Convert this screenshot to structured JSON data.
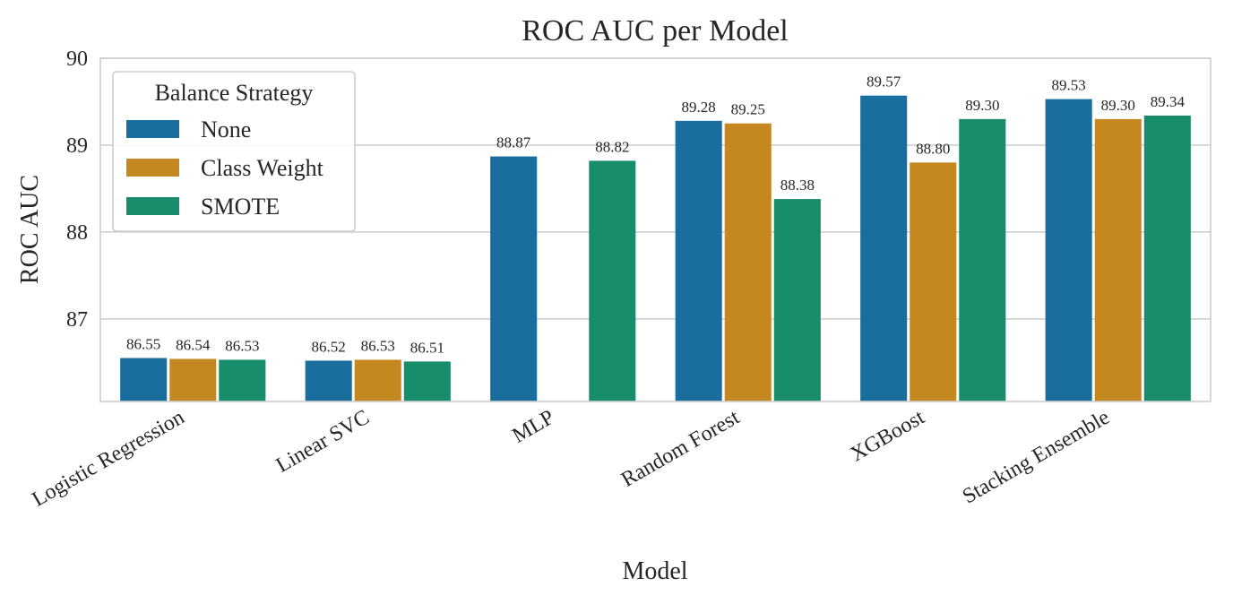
{
  "chart_data": {
    "type": "bar",
    "title": "ROC AUC per Model",
    "xlabel": "Model",
    "ylabel": "ROC AUC",
    "ylim": [
      86.05,
      90
    ],
    "yticks": [
      "87",
      "88",
      "89",
      "90"
    ],
    "ytick_values": [
      87,
      88,
      89,
      90
    ],
    "grid": "horizontal",
    "legend": {
      "title": "Balance Strategy",
      "placement": "top-left"
    },
    "categories": [
      "Logistic Regression",
      "Linear SVC",
      "MLP",
      "Random Forest",
      "XGBoost",
      "Stacking Ensemble"
    ],
    "series": [
      {
        "name": "None",
        "color": "#1a6e9e",
        "values": [
          86.55,
          86.52,
          88.87,
          89.28,
          89.57,
          89.53
        ],
        "labels": [
          "86.55",
          "86.52",
          "88.87",
          "89.28",
          "89.57",
          "89.53"
        ]
      },
      {
        "name": "Class Weight",
        "color": "#c58820",
        "values": [
          86.54,
          86.53,
          null,
          89.25,
          88.8,
          89.3
        ],
        "labels": [
          "86.54",
          "86.53",
          null,
          "89.25",
          "88.80",
          "89.30"
        ]
      },
      {
        "name": "SMOTE",
        "color": "#178d6c",
        "values": [
          86.53,
          86.51,
          88.82,
          88.38,
          89.3,
          89.34
        ],
        "labels": [
          "86.53",
          "86.51",
          "88.82",
          "88.38",
          "89.30",
          "89.34"
        ]
      }
    ]
  }
}
